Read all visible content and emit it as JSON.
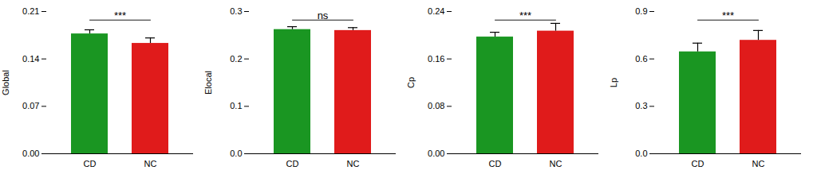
{
  "chart_data": [
    {
      "type": "bar",
      "ylabel": "Global",
      "categories": [
        "CD",
        "NC"
      ],
      "values": [
        0.177,
        0.163
      ],
      "errors": [
        0.006,
        0.008
      ],
      "colors": [
        "#1a9622",
        "#e01b1b"
      ],
      "ylim": [
        0.0,
        0.21
      ],
      "yticks": [
        {
          "value": 0,
          "label": "0.00"
        },
        0.07,
        0.14,
        0.21
      ],
      "annotation": "***",
      "grid": false
    },
    {
      "type": "bar",
      "ylabel": "Elocal",
      "categories": [
        "CD",
        "NC"
      ],
      "values": [
        0.262,
        0.26
      ],
      "errors": [
        0.006,
        0.006
      ],
      "colors": [
        "#1a9622",
        "#e01b1b"
      ],
      "ylim": [
        0.0,
        0.3
      ],
      "yticks": [
        {
          "value": 0,
          "label": "0.0"
        },
        0.1,
        0.2,
        0.3
      ],
      "annotation": "ns",
      "grid": false
    },
    {
      "type": "bar",
      "ylabel": "Cp",
      "categories": [
        "CD",
        "NC"
      ],
      "values": [
        0.197,
        0.207
      ],
      "errors": [
        0.008,
        0.013
      ],
      "colors": [
        "#1a9622",
        "#e01b1b"
      ],
      "ylim": [
        0.0,
        0.24
      ],
      "yticks": [
        {
          "value": 0,
          "label": "0.00"
        },
        0.08,
        0.16,
        0.24
      ],
      "annotation": "***",
      "grid": false
    },
    {
      "type": "bar",
      "ylabel": "Lp",
      "categories": [
        "CD",
        "NC"
      ],
      "values": [
        0.645,
        0.718
      ],
      "errors": [
        0.055,
        0.062
      ],
      "colors": [
        "#1a9622",
        "#e01b1b"
      ],
      "ylim": [
        0.0,
        0.9
      ],
      "yticks": [
        {
          "value": 0,
          "label": "0.0"
        },
        0.3,
        0.6,
        0.9
      ],
      "annotation": "***",
      "grid": false
    }
  ]
}
